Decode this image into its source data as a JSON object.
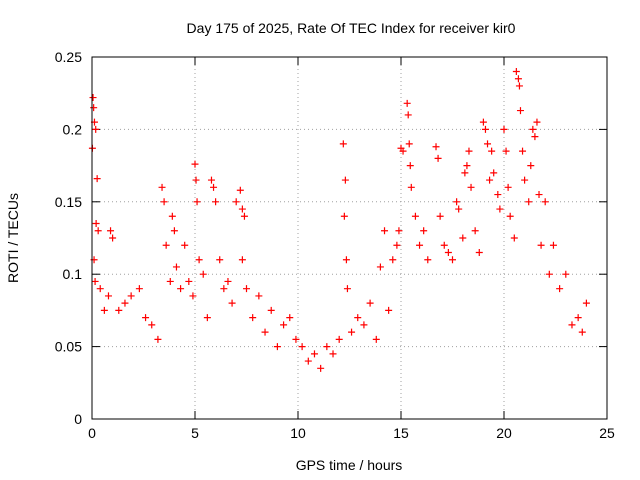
{
  "chart_data": {
    "type": "scatter",
    "title": "Day 175 of 2025, Rate Of TEC Index for receiver kir0",
    "xlabel": "GPS time / hours",
    "ylabel": "ROTI / TECUs",
    "xlim": [
      0,
      25
    ],
    "ylim": [
      0,
      0.25
    ],
    "xticks": [
      0,
      5,
      10,
      15,
      20,
      25
    ],
    "xtick_labels": [
      "0",
      "5",
      "10",
      "15",
      "20",
      "25"
    ],
    "yticks": [
      0,
      0.05,
      0.1,
      0.15,
      0.2,
      0.25
    ],
    "ytick_labels": [
      "0",
      "0.05",
      "0.1",
      "0.15",
      "0.2",
      "0.25"
    ],
    "grid": true,
    "marker": "+",
    "series": [
      {
        "color": "#ff0000",
        "points": [
          [
            0.02,
            0.187
          ],
          [
            0.05,
            0.222
          ],
          [
            0.08,
            0.215
          ],
          [
            0.12,
            0.205
          ],
          [
            0.18,
            0.2
          ],
          [
            0.25,
            0.166
          ],
          [
            0.2,
            0.135
          ],
          [
            0.3,
            0.13
          ],
          [
            0.1,
            0.11
          ],
          [
            0.15,
            0.095
          ],
          [
            0.4,
            0.09
          ],
          [
            0.6,
            0.075
          ],
          [
            0.8,
            0.085
          ],
          [
            0.9,
            0.13
          ],
          [
            1.0,
            0.125
          ],
          [
            1.3,
            0.075
          ],
          [
            1.6,
            0.08
          ],
          [
            1.9,
            0.085
          ],
          [
            2.3,
            0.09
          ],
          [
            2.6,
            0.07
          ],
          [
            2.9,
            0.065
          ],
          [
            3.2,
            0.055
          ],
          [
            3.4,
            0.16
          ],
          [
            3.5,
            0.15
          ],
          [
            3.6,
            0.12
          ],
          [
            3.8,
            0.095
          ],
          [
            3.9,
            0.14
          ],
          [
            4.0,
            0.13
          ],
          [
            4.1,
            0.105
          ],
          [
            4.3,
            0.09
          ],
          [
            4.5,
            0.12
          ],
          [
            4.7,
            0.095
          ],
          [
            4.9,
            0.085
          ],
          [
            5.0,
            0.176
          ],
          [
            5.05,
            0.165
          ],
          [
            5.1,
            0.15
          ],
          [
            5.2,
            0.11
          ],
          [
            5.4,
            0.1
          ],
          [
            5.6,
            0.07
          ],
          [
            5.8,
            0.165
          ],
          [
            5.9,
            0.16
          ],
          [
            6.0,
            0.15
          ],
          [
            6.2,
            0.11
          ],
          [
            6.4,
            0.09
          ],
          [
            6.6,
            0.095
          ],
          [
            6.8,
            0.08
          ],
          [
            7.0,
            0.15
          ],
          [
            7.2,
            0.158
          ],
          [
            7.3,
            0.145
          ],
          [
            7.4,
            0.14
          ],
          [
            7.3,
            0.11
          ],
          [
            7.5,
            0.09
          ],
          [
            7.8,
            0.07
          ],
          [
            8.1,
            0.085
          ],
          [
            8.4,
            0.06
          ],
          [
            8.7,
            0.075
          ],
          [
            9.0,
            0.05
          ],
          [
            9.3,
            0.065
          ],
          [
            9.6,
            0.07
          ],
          [
            9.9,
            0.055
          ],
          [
            10.2,
            0.05
          ],
          [
            10.5,
            0.04
          ],
          [
            10.8,
            0.045
          ],
          [
            11.1,
            0.035
          ],
          [
            11.4,
            0.05
          ],
          [
            11.7,
            0.045
          ],
          [
            12.0,
            0.055
          ],
          [
            12.2,
            0.19
          ],
          [
            12.3,
            0.165
          ],
          [
            12.25,
            0.14
          ],
          [
            12.35,
            0.11
          ],
          [
            12.4,
            0.09
          ],
          [
            12.6,
            0.06
          ],
          [
            12.9,
            0.07
          ],
          [
            13.2,
            0.065
          ],
          [
            13.5,
            0.08
          ],
          [
            13.8,
            0.055
          ],
          [
            14.0,
            0.105
          ],
          [
            14.2,
            0.13
          ],
          [
            14.4,
            0.075
          ],
          [
            14.6,
            0.11
          ],
          [
            14.8,
            0.12
          ],
          [
            14.9,
            0.13
          ],
          [
            15.0,
            0.187
          ],
          [
            15.1,
            0.185
          ],
          [
            15.3,
            0.218
          ],
          [
            15.35,
            0.21
          ],
          [
            15.4,
            0.19
          ],
          [
            15.45,
            0.175
          ],
          [
            15.5,
            0.16
          ],
          [
            15.7,
            0.14
          ],
          [
            15.9,
            0.12
          ],
          [
            16.1,
            0.13
          ],
          [
            16.3,
            0.11
          ],
          [
            16.7,
            0.188
          ],
          [
            16.8,
            0.18
          ],
          [
            16.9,
            0.14
          ],
          [
            17.1,
            0.12
          ],
          [
            17.3,
            0.115
          ],
          [
            17.5,
            0.11
          ],
          [
            17.7,
            0.15
          ],
          [
            17.8,
            0.145
          ],
          [
            18.0,
            0.125
          ],
          [
            18.1,
            0.17
          ],
          [
            18.2,
            0.175
          ],
          [
            18.3,
            0.185
          ],
          [
            18.4,
            0.16
          ],
          [
            18.6,
            0.13
          ],
          [
            18.8,
            0.115
          ],
          [
            19.0,
            0.205
          ],
          [
            19.1,
            0.2
          ],
          [
            19.2,
            0.19
          ],
          [
            19.3,
            0.165
          ],
          [
            19.4,
            0.185
          ],
          [
            19.5,
            0.17
          ],
          [
            19.7,
            0.155
          ],
          [
            19.8,
            0.145
          ],
          [
            20.0,
            0.2
          ],
          [
            20.1,
            0.185
          ],
          [
            20.2,
            0.16
          ],
          [
            20.3,
            0.14
          ],
          [
            20.5,
            0.125
          ],
          [
            20.6,
            0.24
          ],
          [
            20.7,
            0.235
          ],
          [
            20.75,
            0.23
          ],
          [
            20.8,
            0.213
          ],
          [
            20.9,
            0.185
          ],
          [
            21.0,
            0.165
          ],
          [
            21.2,
            0.15
          ],
          [
            21.3,
            0.175
          ],
          [
            21.4,
            0.2
          ],
          [
            21.5,
            0.195
          ],
          [
            21.6,
            0.205
          ],
          [
            21.7,
            0.155
          ],
          [
            21.8,
            0.12
          ],
          [
            22.0,
            0.15
          ],
          [
            22.2,
            0.1
          ],
          [
            22.4,
            0.12
          ],
          [
            22.7,
            0.09
          ],
          [
            23.0,
            0.1
          ],
          [
            23.3,
            0.065
          ],
          [
            23.6,
            0.07
          ],
          [
            23.8,
            0.06
          ],
          [
            24.0,
            0.08
          ]
        ]
      }
    ]
  }
}
